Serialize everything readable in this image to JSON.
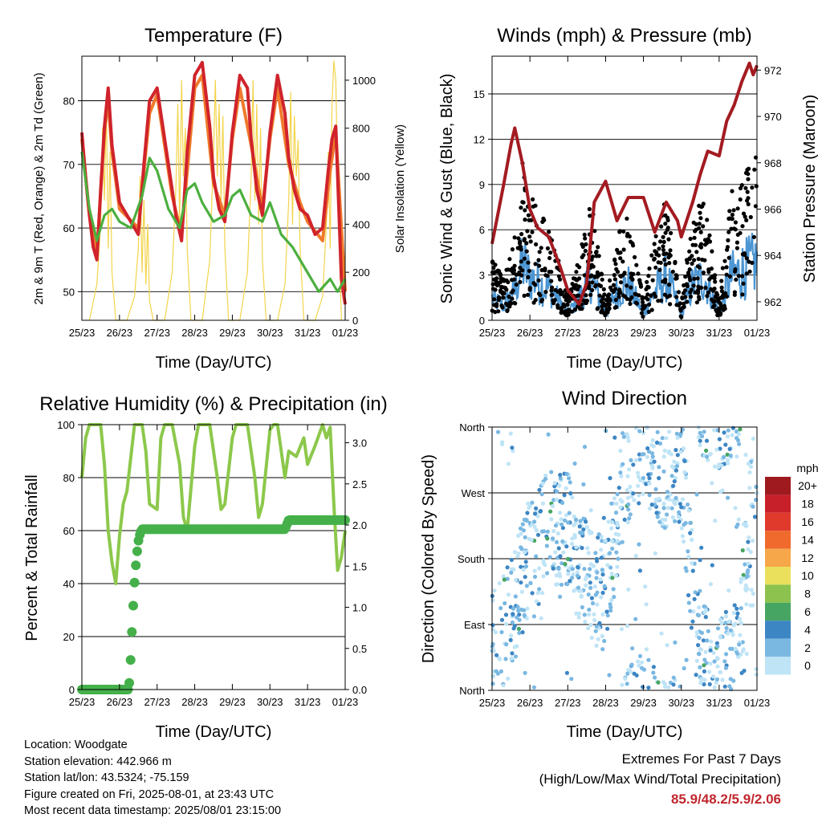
{
  "panels": {
    "temperature": {
      "title": "Temperature (F)",
      "xlabel": "Time (Day/UTC)",
      "ylabel_left": "2m & 9m T (Red, Orange) & 2m Td (Green)",
      "ylabel_right": "Solar Insolation (Yellow)"
    },
    "winds": {
      "title": "Winds (mph) & Pressure (mb)",
      "xlabel": "Time (Day/UTC)",
      "ylabel_left": "Sonic Wind & Gust (Blue, Black)",
      "ylabel_right": "Station Pressure (Maroon)"
    },
    "humidity": {
      "title": "Relative Humidity (%) & Precipitation (in)",
      "xlabel": "Time (Day/UTC)",
      "ylabel_left": "Percent & Total Rainfall"
    },
    "direction": {
      "title": "Wind Direction",
      "xlabel": "Time (Day/UTC)",
      "ylabel_left": "Direction (Colored By Speed)"
    }
  },
  "colorbar": {
    "unit": "mph",
    "labels": [
      "20+",
      "18",
      "16",
      "14",
      "12",
      "10",
      "8",
      "6",
      "4",
      "2",
      "0"
    ],
    "colors": [
      "#9e1a1f",
      "#c8202a",
      "#e03a2c",
      "#ef6a2c",
      "#f6a74a",
      "#ebe05c",
      "#8cc24d",
      "#46a562",
      "#3d86c4",
      "#7ab8e2",
      "#bfe4f6"
    ]
  },
  "info": {
    "location": "Location: Woodgate",
    "elevation": "Station elevation: 442.966 m",
    "latlon": "Station lat/lon: 43.5324; -75.159",
    "created": "Figure created on Fri, 2025-08-01, at 23:43 UTC",
    "recent": "Most recent data timestamp: 2025/08/01 23:15:00"
  },
  "extremes": {
    "line1": "Extremes For Past 7 Days",
    "line2": "(High/Low/Max Wind/Total Precipitation)",
    "values": "85.9/48.2/5.9/2.06"
  },
  "chart_data": [
    {
      "type": "line",
      "title": "Temperature (F)",
      "xlabel": "Time (Day/UTC)",
      "ylabel": "2m & 9m T (Red, Orange) & 2m Td (Green)",
      "y2label": "Solar Insolation (Yellow)",
      "x_ticks": [
        "25/23",
        "26/23",
        "27/23",
        "28/23",
        "29/23",
        "30/23",
        "31/23",
        "01/23"
      ],
      "y_ticks": [
        50,
        60,
        70,
        80
      ],
      "y2_ticks": [
        0,
        200,
        400,
        600,
        800,
        1000
      ],
      "xlim": [
        0,
        7
      ],
      "ylim": [
        45.5,
        87
      ],
      "y2lim": [
        0,
        1100
      ],
      "grid": "horizontal",
      "x_unit": "days since 25/23",
      "series": [
        {
          "name": "2m T",
          "color": "#d0232b",
          "axis": "left",
          "x": [
            0,
            0.1,
            0.2,
            0.3,
            0.4,
            0.5,
            0.6,
            0.7,
            0.8,
            1,
            1.3,
            1.5,
            1.65,
            1.8,
            2,
            2.2,
            2.4,
            2.5,
            2.65,
            2.8,
            3,
            3.2,
            3.4,
            3.5,
            3.65,
            3.8,
            4,
            4.2,
            4.4,
            4.5,
            4.65,
            4.8,
            5,
            5.2,
            5.4,
            5.5,
            5.65,
            5.8,
            6,
            6.2,
            6.4,
            6.55,
            6.65,
            6.75,
            6.9,
            7
          ],
          "y": [
            75,
            68,
            62,
            57,
            55,
            66,
            76,
            82,
            73,
            64,
            61,
            59,
            70,
            80,
            82,
            74,
            66,
            62,
            58,
            72,
            84,
            86,
            76,
            68,
            63,
            61,
            75,
            84,
            82,
            74,
            66,
            62,
            75,
            84,
            78,
            71,
            66,
            63,
            62,
            59,
            60,
            69,
            74,
            76,
            52,
            48
          ]
        },
        {
          "name": "9m T",
          "color": "#f07a2c",
          "axis": "left",
          "x": [
            0,
            0.2,
            0.4,
            0.6,
            0.7,
            0.8,
            1,
            1.5,
            1.8,
            2,
            2.4,
            2.65,
            3,
            3.2,
            3.5,
            3.8,
            4,
            4.2,
            4.5,
            4.8,
            5,
            5.2,
            5.5,
            5.8,
            6,
            6.4,
            6.6,
            6.75,
            7
          ],
          "y": [
            74,
            62,
            56,
            75,
            80,
            72,
            63,
            60,
            78,
            81,
            65,
            59,
            82,
            84,
            67,
            62,
            74,
            82,
            73,
            63,
            74,
            82,
            70,
            64,
            61,
            58,
            69,
            75,
            50
          ]
        },
        {
          "name": "2m Td",
          "color": "#4caf3f",
          "axis": "left",
          "x": [
            0,
            0.2,
            0.4,
            0.6,
            0.8,
            1,
            1.3,
            1.6,
            1.8,
            2,
            2.3,
            2.6,
            2.8,
            3,
            3.2,
            3.5,
            3.8,
            4,
            4.2,
            4.5,
            4.8,
            5,
            5.3,
            5.6,
            6,
            6.3,
            6.6,
            6.8,
            7
          ],
          "y": [
            72,
            63,
            58,
            62,
            63,
            61,
            60,
            65,
            71,
            69,
            63,
            60,
            66,
            67,
            64,
            61,
            62,
            65,
            66,
            62,
            61,
            64,
            59,
            57,
            53,
            50,
            52,
            50,
            52
          ]
        },
        {
          "name": "Solar Insolation",
          "color": "#f3d44a",
          "axis": "right",
          "x": [
            0.2,
            0.4,
            0.5,
            0.55,
            0.6,
            0.65,
            0.7,
            0.75,
            0.8,
            0.9,
            1.2,
            1.4,
            1.5,
            1.55,
            1.6,
            1.65,
            1.7,
            1.75,
            1.8,
            1.9,
            2.2,
            2.4,
            2.5,
            2.55,
            2.6,
            2.65,
            2.7,
            2.75,
            2.8,
            2.9,
            3.2,
            3.4,
            3.5,
            3.55,
            3.6,
            3.65,
            3.7,
            3.75,
            3.8,
            3.9,
            4.2,
            4.4,
            4.5,
            4.55,
            4.6,
            4.65,
            4.7,
            4.75,
            4.8,
            4.9,
            5.2,
            5.4,
            5.5,
            5.55,
            5.6,
            5.65,
            5.7,
            5.75,
            5.8,
            5.9,
            6.2,
            6.4,
            6.5,
            6.55,
            6.6,
            6.65,
            6.7,
            6.75,
            6.8,
            6.9
          ],
          "y": [
            0,
            150,
            400,
            800,
            500,
            900,
            300,
            700,
            200,
            0,
            0,
            100,
            300,
            600,
            200,
            500,
            150,
            400,
            80,
            0,
            0,
            200,
            550,
            900,
            400,
            1000,
            600,
            800,
            300,
            0,
            0,
            250,
            700,
            1000,
            600,
            900,
            500,
            850,
            300,
            0,
            0,
            200,
            600,
            1000,
            500,
            900,
            400,
            800,
            250,
            0,
            0,
            150,
            500,
            950,
            400,
            850,
            600,
            750,
            300,
            0,
            0,
            100,
            400,
            700,
            300,
            900,
            1080,
            1000,
            600,
            0
          ]
        }
      ]
    },
    {
      "type": "scatter",
      "title": "Winds (mph) & Pressure (mb)",
      "xlabel": "Time (Day/UTC)",
      "ylabel": "Sonic Wind & Gust (Blue, Black)",
      "y2label": "Station Pressure (Maroon)",
      "x_ticks": [
        "25/23",
        "26/23",
        "27/23",
        "28/23",
        "29/23",
        "30/23",
        "31/23",
        "01/23"
      ],
      "y_ticks": [
        0,
        3,
        6,
        9,
        12,
        15
      ],
      "y2_ticks": [
        962,
        964,
        966,
        968,
        970,
        972
      ],
      "xlim": [
        0,
        7
      ],
      "ylim": [
        0,
        17.5
      ],
      "y2lim": [
        961.2,
        972.6
      ],
      "grid": "horizontal",
      "x_unit": "days since 25/23",
      "series": [
        {
          "name": "Station Pressure",
          "color": "#a31b21",
          "axis": "right",
          "x": [
            0,
            0.3,
            0.5,
            0.6,
            0.8,
            1,
            1.2,
            1.5,
            1.8,
            2,
            2.3,
            2.5,
            2.7,
            3,
            3.3,
            3.6,
            4,
            4.3,
            4.6,
            4.9,
            5,
            5.3,
            5.5,
            5.7,
            6,
            6.2,
            6.4,
            6.6,
            6.8,
            6.9,
            7
          ],
          "y": [
            964.5,
            967,
            968.8,
            969.5,
            968,
            966,
            965.2,
            964.8,
            963.5,
            962.5,
            961.9,
            962.8,
            966.3,
            967.2,
            965.5,
            966.5,
            966.5,
            965,
            966.3,
            965.5,
            964.8,
            966.3,
            967.5,
            968.5,
            968.3,
            969.8,
            970.5,
            971.5,
            972.3,
            971.8,
            972.2
          ]
        },
        {
          "name": "Gust",
          "color": "#000000",
          "axis": "left",
          "style": "points"
        },
        {
          "name": "Sonic Wind",
          "color": "#4b96d3",
          "axis": "left",
          "style": "lines"
        }
      ]
    },
    {
      "type": "line",
      "title": "Relative Humidity (%) & Precipitation (in)",
      "xlabel": "Time (Day/UTC)",
      "ylabel": "Percent & Total Rainfall",
      "x_ticks": [
        "25/23",
        "26/23",
        "27/23",
        "28/23",
        "29/23",
        "30/23",
        "31/23",
        "01/23"
      ],
      "y_ticks": [
        0,
        20,
        40,
        60,
        80,
        100
      ],
      "y2_ticks": [
        0.0,
        0.5,
        1.0,
        1.5,
        2.0,
        2.5,
        3.0
      ],
      "xlim": [
        0,
        7
      ],
      "ylim": [
        0,
        100
      ],
      "y2lim": [
        0,
        3.22
      ],
      "grid": "horizontal",
      "x_unit": "days since 25/23",
      "series": [
        {
          "name": "Relative Humidity",
          "color": "#8cc84b",
          "axis": "left",
          "x": [
            0,
            0.1,
            0.2,
            0.5,
            0.6,
            0.7,
            0.8,
            0.9,
            1,
            1.1,
            1.2,
            1.4,
            1.6,
            1.7,
            1.8,
            2,
            2.1,
            2.2,
            2.4,
            2.6,
            2.7,
            2.8,
            3,
            3.1,
            3.2,
            3.4,
            3.6,
            3.7,
            3.8,
            4,
            4.1,
            4.2,
            4.4,
            4.6,
            4.7,
            4.8,
            5,
            5.1,
            5.2,
            5.4,
            5.5,
            5.7,
            5.9,
            6,
            6.2,
            6.4,
            6.5,
            6.6,
            6.7,
            6.8,
            6.9,
            7
          ],
          "y": [
            80,
            95,
            100,
            100,
            85,
            60,
            48,
            40,
            58,
            70,
            75,
            100,
            100,
            90,
            70,
            68,
            95,
            100,
            100,
            85,
            65,
            60,
            92,
            100,
            100,
            100,
            80,
            68,
            70,
            95,
            100,
            100,
            100,
            80,
            65,
            70,
            98,
            100,
            100,
            80,
            90,
            88,
            95,
            85,
            92,
            100,
            95,
            99,
            70,
            45,
            50,
            60
          ]
        },
        {
          "name": "Total Rainfall",
          "color": "#45b04a",
          "axis": "right",
          "x": [
            0,
            1.25,
            1.3,
            1.35,
            1.4,
            1.45,
            1.5,
            1.55,
            1.6,
            1.7,
            2,
            5.4,
            5.5,
            6,
            7
          ],
          "y": [
            0,
            0,
            0.4,
            0.9,
            1.3,
            1.6,
            1.8,
            1.9,
            1.95,
            1.95,
            1.95,
            1.95,
            2.06,
            2.06,
            2.06
          ]
        }
      ]
    },
    {
      "type": "scatter",
      "title": "Wind Direction",
      "xlabel": "Time (Day/UTC)",
      "ylabel": "Direction (Colored By Speed)",
      "x_ticks": [
        "25/23",
        "26/23",
        "27/23",
        "28/23",
        "29/23",
        "30/23",
        "31/23",
        "01/23"
      ],
      "y_ticks": [
        "North",
        "East",
        "South",
        "West",
        "North"
      ],
      "xlim": [
        0,
        7
      ],
      "ylim": [
        0,
        360
      ],
      "grid": "horizontal",
      "x_unit": "days since 25/23",
      "color_scale": "mph"
    }
  ]
}
